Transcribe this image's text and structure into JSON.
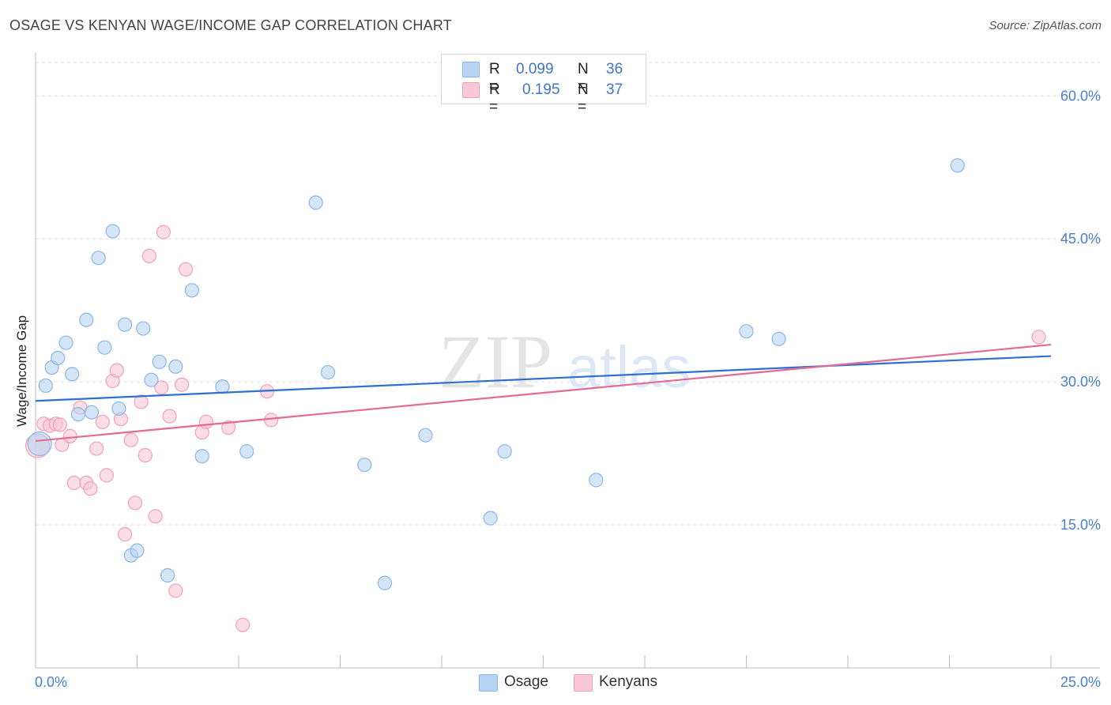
{
  "header": {
    "title": "OSAGE VS KENYAN WAGE/INCOME GAP CORRELATION CHART",
    "source": "Source: ZipAtlas.com"
  },
  "legend": {
    "rows": [
      {
        "r_label": "R =",
        "r_value": "0.099",
        "n_label": "N =",
        "n_value": "36"
      },
      {
        "r_label": "R =",
        "r_value": "0.195",
        "n_label": "N =",
        "n_value": "37"
      }
    ],
    "series_labels": [
      "Osage",
      "Kenyans"
    ]
  },
  "watermark": {
    "zip": "ZIP",
    "atlas": "atlas"
  },
  "colors": {
    "osage_fill": "#b8d4f4",
    "osage_stroke": "#8db6e6",
    "osage_line": "#2f6fcf",
    "kenyan_fill": "#f9c7d6",
    "kenyan_stroke": "#f0a0ba",
    "kenyan_line": "#e56a93",
    "tick_text": "#4a7fd0",
    "grid": "#dddddd"
  },
  "chart_data": {
    "type": "scatter",
    "title": "OSAGE VS KENYAN WAGE/INCOME GAP CORRELATION CHART",
    "xlabel": "",
    "ylabel": "Wage/Income Gap",
    "xlim": [
      0,
      25
    ],
    "ylim": [
      0,
      64
    ],
    "x_tick_labels": [
      "0.0%",
      "25.0%"
    ],
    "y_ticks": [
      15,
      30,
      45,
      60
    ],
    "y_tick_labels": [
      "15.0%",
      "30.0%",
      "45.0%",
      "60.0%"
    ],
    "series": [
      {
        "name": "Osage",
        "r": 0.099,
        "n": 36,
        "trend": {
          "x": [
            0,
            25
          ],
          "y": [
            28.0,
            32.7
          ]
        },
        "points": [
          {
            "x": 0.1,
            "y": 23.5,
            "big": true
          },
          {
            "x": 0.25,
            "y": 29.6
          },
          {
            "x": 0.4,
            "y": 31.5
          },
          {
            "x": 0.55,
            "y": 32.5
          },
          {
            "x": 0.75,
            "y": 34.1
          },
          {
            "x": 0.9,
            "y": 30.8
          },
          {
            "x": 1.05,
            "y": 26.6
          },
          {
            "x": 1.25,
            "y": 36.5
          },
          {
            "x": 1.38,
            "y": 26.8
          },
          {
            "x": 1.55,
            "y": 43.0
          },
          {
            "x": 1.7,
            "y": 33.6
          },
          {
            "x": 1.9,
            "y": 45.8
          },
          {
            "x": 2.05,
            "y": 27.2
          },
          {
            "x": 2.2,
            "y": 36.0
          },
          {
            "x": 2.35,
            "y": 11.8
          },
          {
            "x": 2.5,
            "y": 12.3
          },
          {
            "x": 2.65,
            "y": 35.6
          },
          {
            "x": 2.85,
            "y": 30.2
          },
          {
            "x": 3.05,
            "y": 32.1
          },
          {
            "x": 3.25,
            "y": 9.7
          },
          {
            "x": 3.45,
            "y": 31.6
          },
          {
            "x": 3.85,
            "y": 39.6
          },
          {
            "x": 4.1,
            "y": 22.2
          },
          {
            "x": 4.6,
            "y": 29.5
          },
          {
            "x": 5.2,
            "y": 22.7
          },
          {
            "x": 6.9,
            "y": 48.8
          },
          {
            "x": 7.2,
            "y": 31.0
          },
          {
            "x": 8.1,
            "y": 21.3
          },
          {
            "x": 8.6,
            "y": 8.9
          },
          {
            "x": 9.6,
            "y": 24.4
          },
          {
            "x": 11.2,
            "y": 15.7
          },
          {
            "x": 11.55,
            "y": 22.7
          },
          {
            "x": 13.8,
            "y": 19.7
          },
          {
            "x": 17.5,
            "y": 35.3
          },
          {
            "x": 18.3,
            "y": 34.5
          },
          {
            "x": 22.7,
            "y": 52.7
          }
        ]
      },
      {
        "name": "Kenyans",
        "r": 0.195,
        "n": 37,
        "trend": {
          "x": [
            0,
            25
          ],
          "y": [
            23.8,
            33.9
          ]
        },
        "points": [
          {
            "x": 0.05,
            "y": 23.3,
            "big": true
          },
          {
            "x": 0.2,
            "y": 25.6
          },
          {
            "x": 0.35,
            "y": 25.4
          },
          {
            "x": 0.5,
            "y": 25.6
          },
          {
            "x": 0.65,
            "y": 23.4
          },
          {
            "x": 0.85,
            "y": 24.3
          },
          {
            "x": 0.95,
            "y": 19.4
          },
          {
            "x": 1.1,
            "y": 27.3
          },
          {
            "x": 1.25,
            "y": 19.4
          },
          {
            "x": 1.35,
            "y": 18.8
          },
          {
            "x": 1.5,
            "y": 23.0
          },
          {
            "x": 1.65,
            "y": 25.8
          },
          {
            "x": 1.75,
            "y": 20.2
          },
          {
            "x": 1.9,
            "y": 30.1
          },
          {
            "x": 2.0,
            "y": 31.2
          },
          {
            "x": 2.1,
            "y": 26.1
          },
          {
            "x": 2.2,
            "y": 14.0
          },
          {
            "x": 2.35,
            "y": 23.9
          },
          {
            "x": 2.45,
            "y": 17.3
          },
          {
            "x": 2.6,
            "y": 27.9
          },
          {
            "x": 2.7,
            "y": 22.3
          },
          {
            "x": 2.8,
            "y": 43.2
          },
          {
            "x": 2.95,
            "y": 15.9
          },
          {
            "x": 3.1,
            "y": 29.4
          },
          {
            "x": 3.15,
            "y": 45.7
          },
          {
            "x": 3.3,
            "y": 26.4
          },
          {
            "x": 3.45,
            "y": 8.1
          },
          {
            "x": 3.6,
            "y": 29.7
          },
          {
            "x": 3.7,
            "y": 41.8
          },
          {
            "x": 4.1,
            "y": 24.7
          },
          {
            "x": 4.2,
            "y": 25.8
          },
          {
            "x": 4.75,
            "y": 25.2
          },
          {
            "x": 5.1,
            "y": 4.5
          },
          {
            "x": 5.7,
            "y": 29.0
          },
          {
            "x": 5.8,
            "y": 26.0
          },
          {
            "x": 24.7,
            "y": 34.7
          },
          {
            "x": 0.6,
            "y": 25.5
          }
        ]
      }
    ]
  }
}
